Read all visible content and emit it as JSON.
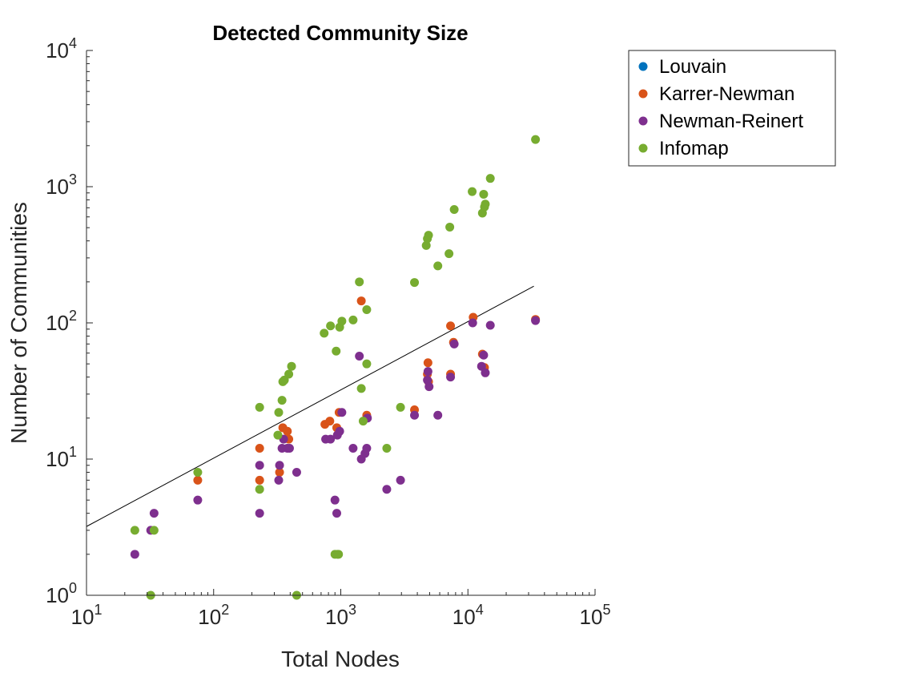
{
  "chart_data": {
    "type": "scatter",
    "title": "Detected Community Size",
    "xlabel": "Total Nodes",
    "ylabel": "Number of Communities",
    "xscale": "log",
    "yscale": "log",
    "xlim": [
      10,
      100000
    ],
    "ylim": [
      1,
      10000
    ],
    "x_ticks": [
      {
        "base": "10",
        "exp": "1"
      },
      {
        "base": "10",
        "exp": "2"
      },
      {
        "base": "10",
        "exp": "3"
      },
      {
        "base": "10",
        "exp": "4"
      },
      {
        "base": "10",
        "exp": "5"
      }
    ],
    "y_ticks": [
      {
        "base": "10",
        "exp": "0"
      },
      {
        "base": "10",
        "exp": "1"
      },
      {
        "base": "10",
        "exp": "2"
      },
      {
        "base": "10",
        "exp": "3"
      },
      {
        "base": "10",
        "exp": "4"
      }
    ],
    "legend_position": "outside top-right",
    "grid": false,
    "series": [
      {
        "name": "Louvain",
        "color": "#0072BD",
        "points": []
      },
      {
        "name": "Karrer-Newman",
        "color": "#D95319",
        "points": [
          [
            75,
            7
          ],
          [
            230,
            12
          ],
          [
            230,
            7
          ],
          [
            330,
            8
          ],
          [
            350,
            17
          ],
          [
            380,
            16
          ],
          [
            390,
            14
          ],
          [
            750,
            18
          ],
          [
            820,
            19
          ],
          [
            930,
            17
          ],
          [
            970,
            22
          ],
          [
            1450,
            145
          ],
          [
            1600,
            21
          ],
          [
            3800,
            23
          ],
          [
            4800,
            42
          ],
          [
            4850,
            51
          ],
          [
            4900,
            37
          ],
          [
            7300,
            95
          ],
          [
            7300,
            42
          ],
          [
            7700,
            72
          ],
          [
            11000,
            110
          ],
          [
            13000,
            59
          ],
          [
            13500,
            47
          ],
          [
            34000,
            106
          ]
        ]
      },
      {
        "name": "Newman-Reinert",
        "color": "#7E2F8E",
        "points": [
          [
            24,
            2
          ],
          [
            32,
            3
          ],
          [
            34,
            4
          ],
          [
            75,
            5
          ],
          [
            230,
            9
          ],
          [
            230,
            4
          ],
          [
            325,
            7
          ],
          [
            330,
            9
          ],
          [
            345,
            12
          ],
          [
            355,
            14
          ],
          [
            380,
            12
          ],
          [
            395,
            12
          ],
          [
            450,
            8
          ],
          [
            760,
            14
          ],
          [
            830,
            14
          ],
          [
            900,
            5
          ],
          [
            930,
            4
          ],
          [
            940,
            15
          ],
          [
            980,
            16
          ],
          [
            1020,
            22
          ],
          [
            1250,
            12
          ],
          [
            1400,
            57
          ],
          [
            1450,
            10
          ],
          [
            1550,
            11
          ],
          [
            1600,
            12
          ],
          [
            1620,
            20
          ],
          [
            2300,
            6
          ],
          [
            2950,
            7
          ],
          [
            3800,
            21
          ],
          [
            4800,
            38
          ],
          [
            4850,
            44
          ],
          [
            4950,
            34
          ],
          [
            5800,
            21
          ],
          [
            7300,
            40
          ],
          [
            7800,
            70
          ],
          [
            10900,
            100
          ],
          [
            12800,
            48
          ],
          [
            13300,
            58
          ],
          [
            13700,
            43
          ],
          [
            15000,
            96
          ],
          [
            34000,
            104
          ]
        ]
      },
      {
        "name": "Infomap",
        "color": "#77AC30",
        "points": [
          [
            24,
            3
          ],
          [
            32,
            1
          ],
          [
            34,
            3
          ],
          [
            75,
            8
          ],
          [
            230,
            24
          ],
          [
            230,
            6
          ],
          [
            320,
            15
          ],
          [
            325,
            22
          ],
          [
            345,
            27
          ],
          [
            350,
            37
          ],
          [
            360,
            38
          ],
          [
            390,
            42
          ],
          [
            410,
            48
          ],
          [
            740,
            84
          ],
          [
            830,
            95
          ],
          [
            900,
            2
          ],
          [
            920,
            62
          ],
          [
            940,
            2
          ],
          [
            960,
            2
          ],
          [
            980,
            93
          ],
          [
            1020,
            103
          ],
          [
            1250,
            105
          ],
          [
            1400,
            200
          ],
          [
            1450,
            33
          ],
          [
            1500,
            19
          ],
          [
            1600,
            50
          ],
          [
            1600,
            125
          ],
          [
            2300,
            12
          ],
          [
            2950,
            24
          ],
          [
            3800,
            198
          ],
          [
            4700,
            370
          ],
          [
            4800,
            415
          ],
          [
            4900,
            440
          ],
          [
            5800,
            262
          ],
          [
            7100,
            322
          ],
          [
            7200,
            505
          ],
          [
            7800,
            680
          ],
          [
            10800,
            920
          ],
          [
            13000,
            640
          ],
          [
            13300,
            880
          ],
          [
            13500,
            710
          ],
          [
            13700,
            745
          ],
          [
            15000,
            1150
          ],
          [
            34000,
            2220
          ],
          [
            450,
            1
          ]
        ]
      }
    ],
    "fit_line": {
      "color": "#000000",
      "points": [
        [
          10,
          3.2
        ],
        [
          33000,
          186
        ]
      ]
    }
  }
}
